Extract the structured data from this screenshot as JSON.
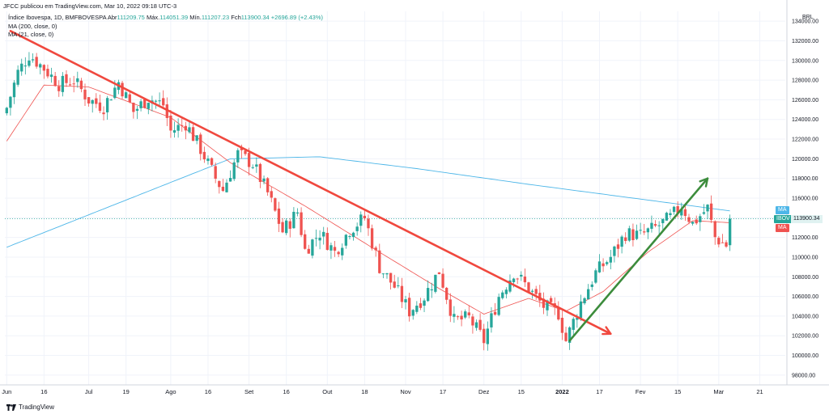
{
  "header": {
    "published": "JFCC publicou em TradingView.com, Mar 10, 2022 09:18 UTC-3"
  },
  "legend": {
    "symbol": "Índice Ibovespa, 1D, BMFBOVESPA",
    "open_label": "Abr",
    "open": "111209.75",
    "high_label": "Máx.",
    "high": "114051.39",
    "low_label": "Mín.",
    "low": "111207.23",
    "close_label": "Fch",
    "close": "113900.34",
    "change": "+2696.89 (+2.43%)",
    "ma1": "MA (200, close, 0)",
    "ma2": "MA (21, close, 0)"
  },
  "axis": {
    "currency": "BRL",
    "last_price": "113900.34",
    "ma_badge": "MA",
    "symbol_badge": "IBOV"
  },
  "footer": {
    "brand": "TradingView"
  },
  "colors": {
    "up": "#26a69a",
    "down": "#ef5350",
    "ma200": "#4db6e8",
    "ma21": "#ef5350",
    "trend_down": "#f0483e",
    "trend_up": "#3c8c3c"
  },
  "chart_data": {
    "type": "candlestick",
    "ylim": [
      97000,
      135000
    ],
    "y_ticks": [
      98000,
      100000,
      102000,
      104000,
      106000,
      108000,
      110000,
      112000,
      114000,
      116000,
      118000,
      120000,
      122000,
      124000,
      126000,
      128000,
      130000,
      132000,
      134000
    ],
    "y_tick_labels": [
      "98000.00",
      "100000.00",
      "102000.00",
      "104000.00",
      "106000.00",
      "108000.00",
      "110000.00",
      "112000.00",
      "114000.00",
      "116000.00",
      "118000.00",
      "120000.00",
      "122000.00",
      "124000.00",
      "126000.00",
      "128000.00",
      "130000.00",
      "132000.00",
      "134000.00"
    ],
    "x_tick_labels": [
      "Jun",
      "16",
      "Jul",
      "19",
      "Ago",
      "16",
      "Set",
      "16",
      "Out",
      "18",
      "Nov",
      "17",
      "Dez",
      "15",
      "2022",
      "17",
      "Fev",
      "15",
      "Mar",
      "21"
    ],
    "x_tick_index": [
      0,
      10,
      22,
      32,
      44,
      54,
      65,
      75,
      86,
      96,
      107,
      117,
      128,
      138,
      149,
      159,
      170,
      180,
      191,
      202
    ],
    "num_bars": 195,
    "anchors_close": [
      [
        0,
        125200
      ],
      [
        3,
        128800
      ],
      [
        6,
        130600
      ],
      [
        10,
        129200
      ],
      [
        14,
        127600
      ],
      [
        18,
        128000
      ],
      [
        22,
        126000
      ],
      [
        26,
        125300
      ],
      [
        30,
        127800
      ],
      [
        34,
        124800
      ],
      [
        38,
        126200
      ],
      [
        42,
        125500
      ],
      [
        44,
        122800
      ],
      [
        48,
        123600
      ],
      [
        52,
        121000
      ],
      [
        56,
        118000
      ],
      [
        58,
        116800
      ],
      [
        62,
        120500
      ],
      [
        66,
        119500
      ],
      [
        70,
        116500
      ],
      [
        74,
        112600
      ],
      [
        78,
        114600
      ],
      [
        80,
        110700
      ],
      [
        84,
        112500
      ],
      [
        88,
        110500
      ],
      [
        92,
        112800
      ],
      [
        96,
        114000
      ],
      [
        100,
        109000
      ],
      [
        104,
        107000
      ],
      [
        108,
        104500
      ],
      [
        112,
        106000
      ],
      [
        116,
        108600
      ],
      [
        120,
        103500
      ],
      [
        124,
        103800
      ],
      [
        128,
        101500
      ],
      [
        132,
        106000
      ],
      [
        136,
        108500
      ],
      [
        140,
        106800
      ],
      [
        144,
        105000
      ],
      [
        148,
        104300
      ],
      [
        150,
        101500
      ],
      [
        154,
        105400
      ],
      [
        158,
        108400
      ],
      [
        162,
        110000
      ],
      [
        166,
        112400
      ],
      [
        170,
        112200
      ],
      [
        174,
        113000
      ],
      [
        178,
        114000
      ],
      [
        181,
        115200
      ],
      [
        184,
        113400
      ],
      [
        188,
        115000
      ],
      [
        190,
        112000
      ],
      [
        193,
        111200
      ],
      [
        194,
        113900
      ]
    ],
    "ma200_anchors": [
      [
        0,
        111000
      ],
      [
        30,
        115500
      ],
      [
        60,
        120000
      ],
      [
        84,
        120200
      ],
      [
        110,
        119000
      ],
      [
        140,
        117400
      ],
      [
        170,
        115900
      ],
      [
        194,
        114700
      ]
    ],
    "ma21_anchors": [
      [
        0,
        121800
      ],
      [
        10,
        127500
      ],
      [
        22,
        127300
      ],
      [
        44,
        124200
      ],
      [
        60,
        119600
      ],
      [
        80,
        115200
      ],
      [
        100,
        110500
      ],
      [
        116,
        106800
      ],
      [
        128,
        104200
      ],
      [
        140,
        105800
      ],
      [
        150,
        104500
      ],
      [
        160,
        106500
      ],
      [
        172,
        110500
      ],
      [
        184,
        113700
      ],
      [
        194,
        113500
      ]
    ],
    "trend_lines": [
      {
        "from": [
          1,
          133000
        ],
        "to": [
          162,
          102200
        ],
        "color": "#f0483e",
        "arrow": true
      },
      {
        "from": [
          151,
          101500
        ],
        "to": [
          188,
          118000
        ],
        "color": "#3c8c3c",
        "arrow": true
      }
    ]
  }
}
